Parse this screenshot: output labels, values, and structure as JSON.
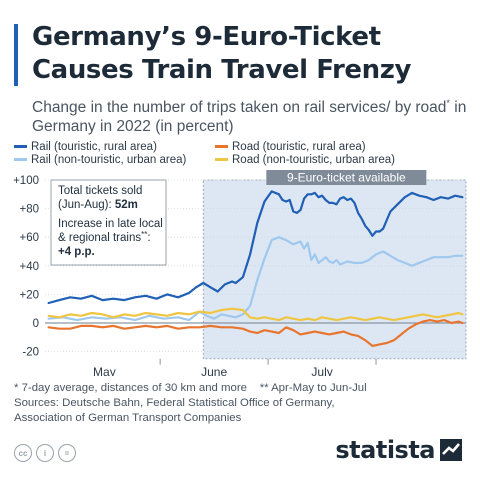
{
  "header": {
    "title": "Germany’s 9-Euro-Ticket Causes Train Travel Frenzy",
    "subtitle_pre": "Change in the number of trips taken on rail services/ by road",
    "subtitle_sup": "*",
    "subtitle_post": " in Germany in 2022 (in percent)"
  },
  "colors": {
    "rail_touristic": "#1f5fb5",
    "rail_urban": "#9fc8ef",
    "road_touristic": "#e8752e",
    "road_urban": "#f0c541",
    "shade": "#dde7f3",
    "text": "#1d2b38"
  },
  "chart_data": {
    "type": "line",
    "xlabel": "",
    "ylabel": "",
    "ylim": [
      -25,
      100
    ],
    "yticks": [
      -20,
      0,
      20,
      40,
      60,
      80,
      100
    ],
    "ytick_labels": [
      "-20",
      "0",
      "+20",
      "+40",
      "+60",
      "+80",
      "+100"
    ],
    "x_month_labels": [
      "May",
      "June",
      "July"
    ],
    "shaded_region_label": "9-Euro-ticket available",
    "grid": true,
    "legend_position": "top",
    "annotation": {
      "line1": "Total tickets sold",
      "line2_prefix": "(Jun-Aug): ",
      "line2_value": "52m",
      "line3": "Increase in late local",
      "line4_prefix": "& regional trains",
      "line4_sup": "**",
      "line4_suffix": ":",
      "line5": "+4 p.p."
    },
    "series": [
      {
        "name": "Rail (touristic, rural area)",
        "color": "#1f5fb5",
        "points": [
          [
            1,
            14
          ],
          [
            4,
            16
          ],
          [
            7,
            18
          ],
          [
            10,
            17
          ],
          [
            13,
            19
          ],
          [
            16,
            16
          ],
          [
            19,
            17
          ],
          [
            22,
            16
          ],
          [
            25,
            18
          ],
          [
            28,
            19
          ],
          [
            31,
            17
          ],
          [
            34,
            20
          ],
          [
            37,
            18
          ],
          [
            40,
            21
          ],
          [
            42,
            25
          ],
          [
            44,
            28
          ],
          [
            46,
            25
          ],
          [
            48,
            22
          ],
          [
            50,
            27
          ],
          [
            52,
            29
          ],
          [
            53,
            28
          ],
          [
            55,
            32
          ],
          [
            57,
            48
          ],
          [
            59,
            70
          ],
          [
            61,
            85
          ],
          [
            63,
            92
          ],
          [
            65,
            90
          ],
          [
            66,
            86
          ],
          [
            67,
            85
          ],
          [
            68,
            86
          ],
          [
            69,
            78
          ],
          [
            70,
            77
          ],
          [
            71,
            79
          ],
          [
            72,
            87
          ],
          [
            73,
            90
          ],
          [
            74,
            90
          ],
          [
            75,
            91
          ],
          [
            76,
            88
          ],
          [
            77,
            89
          ],
          [
            78,
            86
          ],
          [
            79,
            84
          ],
          [
            80,
            84
          ],
          [
            81,
            83
          ],
          [
            82,
            87
          ],
          [
            83,
            88
          ],
          [
            84,
            86
          ],
          [
            85,
            87
          ],
          [
            86,
            84
          ],
          [
            87,
            77
          ],
          [
            88,
            73
          ],
          [
            89,
            68
          ],
          [
            90,
            65
          ],
          [
            91,
            61
          ],
          [
            92,
            64
          ],
          [
            93,
            64
          ],
          [
            94,
            66
          ],
          [
            95,
            72
          ],
          [
            96,
            78
          ],
          [
            98,
            83
          ],
          [
            100,
            88
          ],
          [
            102,
            91
          ],
          [
            104,
            89
          ],
          [
            106,
            88
          ],
          [
            108,
            86
          ],
          [
            110,
            88
          ],
          [
            112,
            87
          ],
          [
            114,
            89
          ],
          [
            116,
            88
          ]
        ]
      },
      {
        "name": "Rail (non-touristic, urban area)",
        "color": "#9fc8ef",
        "points": [
          [
            1,
            3
          ],
          [
            5,
            4
          ],
          [
            9,
            2
          ],
          [
            13,
            4
          ],
          [
            17,
            3
          ],
          [
            21,
            4
          ],
          [
            25,
            2
          ],
          [
            29,
            5
          ],
          [
            33,
            3
          ],
          [
            37,
            4
          ],
          [
            40,
            2
          ],
          [
            43,
            8
          ],
          [
            45,
            5
          ],
          [
            47,
            3
          ],
          [
            49,
            6
          ],
          [
            51,
            5
          ],
          [
            53,
            4
          ],
          [
            55,
            6
          ],
          [
            57,
            12
          ],
          [
            59,
            30
          ],
          [
            61,
            45
          ],
          [
            63,
            58
          ],
          [
            65,
            60
          ],
          [
            67,
            58
          ],
          [
            69,
            55
          ],
          [
            71,
            57
          ],
          [
            72,
            52
          ],
          [
            73,
            56
          ],
          [
            74,
            44
          ],
          [
            75,
            48
          ],
          [
            76,
            42
          ],
          [
            77,
            44
          ],
          [
            78,
            46
          ],
          [
            79,
            43
          ],
          [
            80,
            42
          ],
          [
            81,
            44
          ],
          [
            82,
            41
          ],
          [
            84,
            43
          ],
          [
            86,
            42
          ],
          [
            88,
            42
          ],
          [
            90,
            44
          ],
          [
            92,
            48
          ],
          [
            94,
            50
          ],
          [
            96,
            47
          ],
          [
            98,
            44
          ],
          [
            100,
            42
          ],
          [
            102,
            40
          ],
          [
            104,
            42
          ],
          [
            106,
            44
          ],
          [
            108,
            46
          ],
          [
            110,
            46
          ],
          [
            112,
            46
          ],
          [
            114,
            47
          ],
          [
            116,
            47
          ]
        ]
      },
      {
        "name": "Road (touristic, rural area)",
        "color": "#e8752e",
        "points": [
          [
            1,
            -3
          ],
          [
            4,
            -4
          ],
          [
            7,
            -4
          ],
          [
            10,
            -2
          ],
          [
            13,
            -2
          ],
          [
            16,
            -3
          ],
          [
            19,
            -2
          ],
          [
            22,
            -4
          ],
          [
            25,
            -3
          ],
          [
            28,
            -2
          ],
          [
            31,
            -3
          ],
          [
            34,
            -2
          ],
          [
            37,
            -4
          ],
          [
            40,
            -3
          ],
          [
            43,
            -3
          ],
          [
            46,
            -2
          ],
          [
            49,
            -3
          ],
          [
            52,
            -3
          ],
          [
            55,
            -4
          ],
          [
            57,
            -6
          ],
          [
            59,
            -7
          ],
          [
            61,
            -5
          ],
          [
            63,
            -6
          ],
          [
            65,
            -7
          ],
          [
            67,
            -3
          ],
          [
            69,
            -5
          ],
          [
            71,
            -8
          ],
          [
            73,
            -7
          ],
          [
            75,
            -6
          ],
          [
            77,
            -7
          ],
          [
            79,
            -8
          ],
          [
            81,
            -7
          ],
          [
            83,
            -6
          ],
          [
            85,
            -8
          ],
          [
            87,
            -9
          ],
          [
            89,
            -12
          ],
          [
            91,
            -16
          ],
          [
            93,
            -15
          ],
          [
            95,
            -14
          ],
          [
            97,
            -12
          ],
          [
            99,
            -8
          ],
          [
            101,
            -4
          ],
          [
            103,
            -1
          ],
          [
            105,
            1
          ],
          [
            107,
            2
          ],
          [
            109,
            1
          ],
          [
            111,
            2
          ],
          [
            113,
            0
          ],
          [
            115,
            1
          ],
          [
            116,
            0
          ]
        ]
      },
      {
        "name": "Road (non-touristic, urban area)",
        "color": "#f0c541",
        "points": [
          [
            1,
            5
          ],
          [
            4,
            4
          ],
          [
            7,
            6
          ],
          [
            10,
            5
          ],
          [
            13,
            7
          ],
          [
            16,
            6
          ],
          [
            19,
            4
          ],
          [
            22,
            6
          ],
          [
            25,
            5
          ],
          [
            28,
            7
          ],
          [
            31,
            6
          ],
          [
            34,
            5
          ],
          [
            37,
            7
          ],
          [
            40,
            6
          ],
          [
            43,
            8
          ],
          [
            46,
            7
          ],
          [
            49,
            9
          ],
          [
            52,
            10
          ],
          [
            55,
            9
          ],
          [
            57,
            4
          ],
          [
            59,
            3
          ],
          [
            61,
            4
          ],
          [
            63,
            3
          ],
          [
            65,
            2
          ],
          [
            67,
            4
          ],
          [
            69,
            3
          ],
          [
            71,
            2
          ],
          [
            73,
            3
          ],
          [
            75,
            2
          ],
          [
            77,
            4
          ],
          [
            79,
            3
          ],
          [
            81,
            2
          ],
          [
            83,
            3
          ],
          [
            85,
            4
          ],
          [
            87,
            3
          ],
          [
            89,
            2
          ],
          [
            91,
            3
          ],
          [
            93,
            4
          ],
          [
            95,
            3
          ],
          [
            97,
            2
          ],
          [
            99,
            3
          ],
          [
            101,
            4
          ],
          [
            103,
            5
          ],
          [
            105,
            6
          ],
          [
            107,
            5
          ],
          [
            109,
            4
          ],
          [
            111,
            5
          ],
          [
            113,
            6
          ],
          [
            115,
            7
          ],
          [
            116,
            6
          ]
        ]
      }
    ]
  },
  "footer": {
    "note_a": "* 7-day average, distances of 30 km and more",
    "note_b": "** Apr-May to Jun-Jul",
    "sources_1": "Sources: Deutsche Bahn, Federal Statistical Office of Germany,",
    "sources_2": "Association of German Transport Companies"
  },
  "brand": {
    "name": "statista",
    "license_icons": [
      "cc-icon",
      "by-icon",
      "nd-icon"
    ],
    "license_texts": [
      "cc",
      "i",
      "="
    ]
  }
}
